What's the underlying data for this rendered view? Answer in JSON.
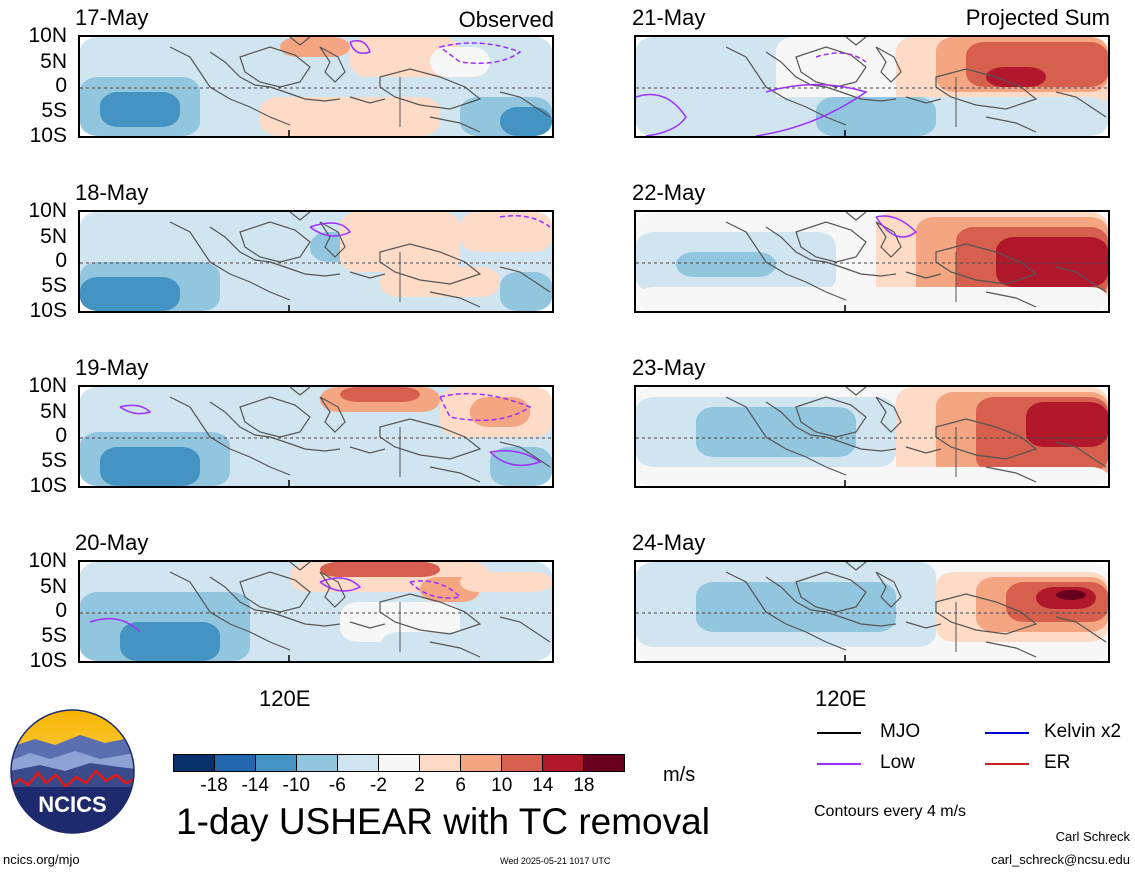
{
  "panels": {
    "left": [
      {
        "date": "17-May",
        "tag": "Observed"
      },
      {
        "date": "18-May",
        "tag": ""
      },
      {
        "date": "19-May",
        "tag": ""
      },
      {
        "date": "20-May",
        "tag": ""
      }
    ],
    "right": [
      {
        "date": "21-May",
        "tag": "Projected Sum"
      },
      {
        "date": "22-May",
        "tag": ""
      },
      {
        "date": "23-May",
        "tag": ""
      },
      {
        "date": "24-May",
        "tag": ""
      }
    ]
  },
  "lat_labels": [
    "10N",
    "5N",
    "0",
    "5S",
    "10S"
  ],
  "lon_label": "120E",
  "colorbar": {
    "colors": [
      "#08306b",
      "#2166ac",
      "#4393c3",
      "#92c5de",
      "#d1e5f0",
      "#f7f7f7",
      "#fddbc7",
      "#f4a582",
      "#d6604d",
      "#b2182b",
      "#67001f"
    ],
    "ticks": [
      "-18",
      "-14",
      "-10",
      "-6",
      "-2",
      "2",
      "6",
      "10",
      "14",
      "18"
    ],
    "units": "m/s"
  },
  "title": "1-day USHEAR with TC removal",
  "legend": [
    {
      "label": "MJO",
      "color": "#000000"
    },
    {
      "label": "Kelvin x2",
      "color": "#0000cc"
    },
    {
      "label": "Low",
      "color": "#9b30ff"
    },
    {
      "label": "ER",
      "color": "#cc2222"
    }
  ],
  "contour_note": "Contours every 4 m/s",
  "footer": {
    "site": "ncics.org/mjo",
    "timestamp": "Wed 2025-05-21 1017 UTC",
    "author": "Carl Schreck",
    "email": "carl_schreck@ncsu.edu"
  },
  "logo_text": "NCICS"
}
